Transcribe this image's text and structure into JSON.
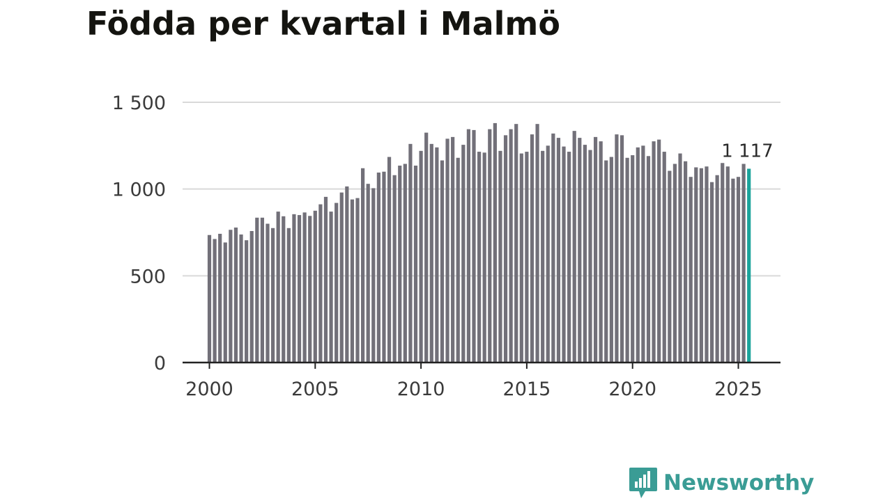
{
  "title": "Födda per kvartal i Malmö",
  "brand": "Newsworthy",
  "colors": {
    "bar": "#727079",
    "highlight": "#1aa39b",
    "grid": "#d9d9d9",
    "axis": "#222222",
    "brand": "#3a9c95"
  },
  "chart_data": {
    "type": "bar",
    "title": "Födda per kvartal i Malmö",
    "xlabel": "",
    "ylabel": "",
    "ylim": [
      0,
      1500
    ],
    "yticks": [
      0,
      500,
      1000,
      1500
    ],
    "ytick_labels": [
      "0",
      "500",
      "1 000",
      "1 500"
    ],
    "xtick_labels": [
      "2000",
      "2005",
      "2010",
      "2015",
      "2020",
      "2025"
    ],
    "x_start": 2000,
    "x_end": 2025.75,
    "periods_per_year": 4,
    "highlight_label": "1 117",
    "values": [
      735,
      712,
      742,
      692,
      765,
      778,
      738,
      705,
      758,
      835,
      835,
      800,
      775,
      870,
      843,
      775,
      855,
      850,
      865,
      845,
      875,
      912,
      955,
      870,
      920,
      980,
      1015,
      940,
      948,
      1120,
      1030,
      1005,
      1095,
      1100,
      1185,
      1080,
      1135,
      1145,
      1260,
      1135,
      1220,
      1325,
      1260,
      1240,
      1165,
      1290,
      1300,
      1180,
      1255,
      1345,
      1340,
      1215,
      1210,
      1345,
      1380,
      1220,
      1310,
      1345,
      1375,
      1205,
      1215,
      1315,
      1375,
      1220,
      1250,
      1320,
      1295,
      1245,
      1215,
      1335,
      1295,
      1255,
      1225,
      1300,
      1275,
      1165,
      1185,
      1315,
      1310,
      1180,
      1195,
      1240,
      1250,
      1190,
      1275,
      1285,
      1215,
      1105,
      1145,
      1205,
      1160,
      1070,
      1125,
      1120,
      1130,
      1040,
      1080,
      1150,
      1130,
      1060,
      1070,
      1145,
      1117
    ]
  }
}
